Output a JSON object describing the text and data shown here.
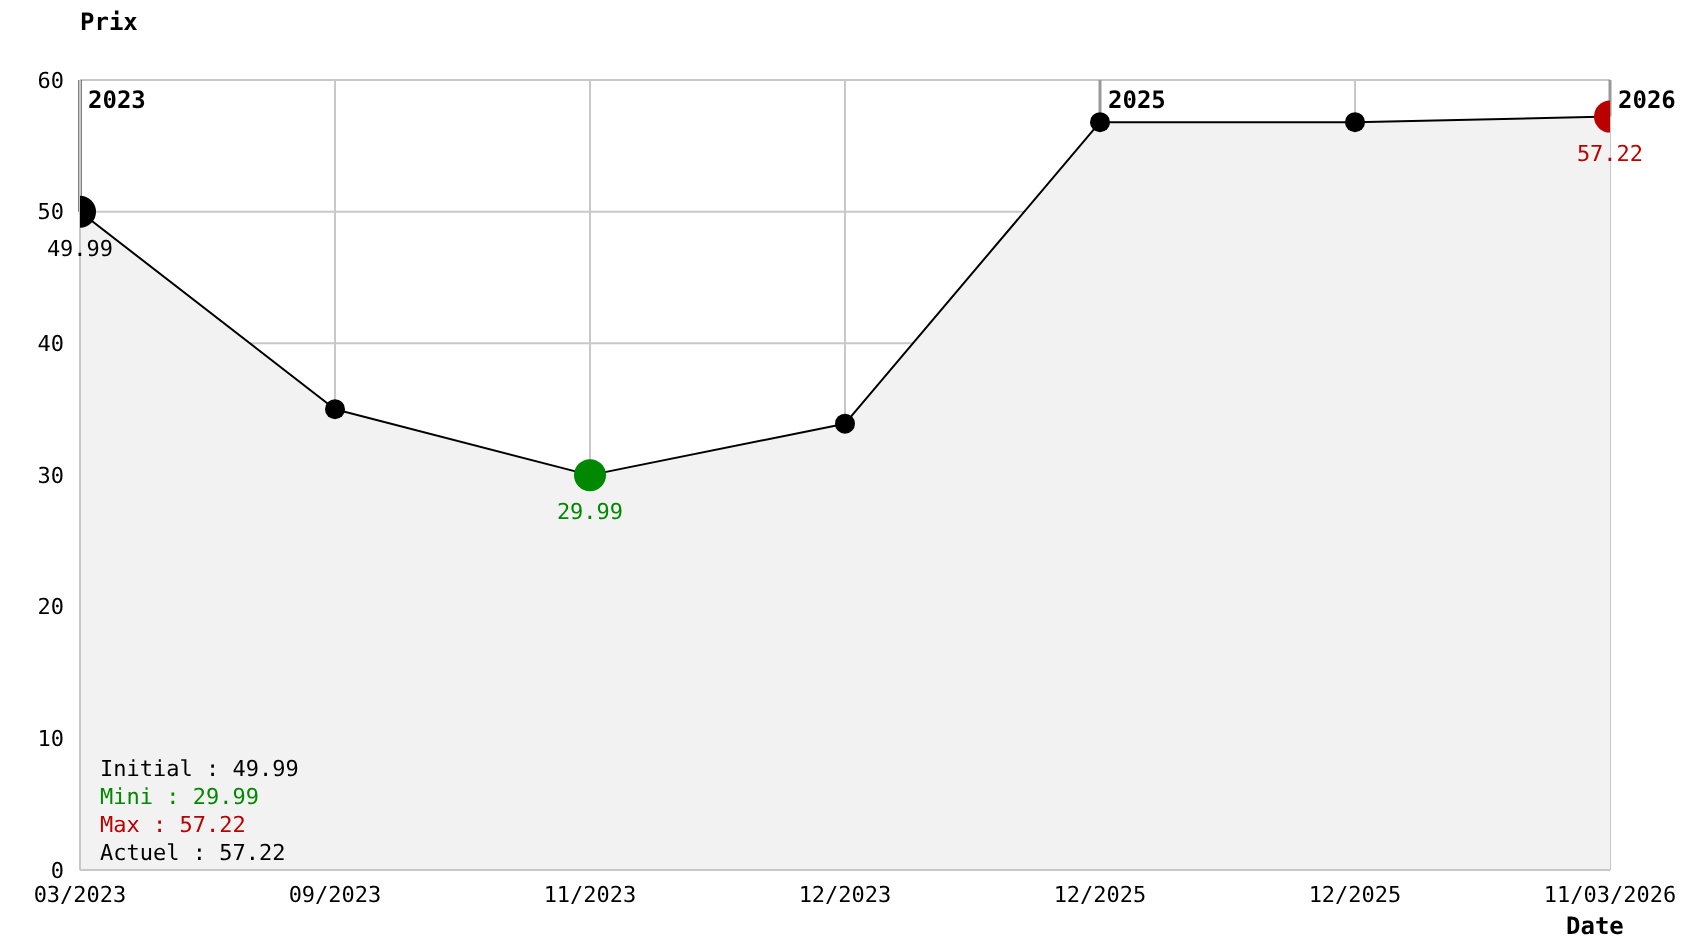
{
  "chart_data": {
    "type": "area",
    "xlabel": "Date",
    "ylabel": "Prix",
    "categories": [
      "03/2023",
      "09/2023",
      "11/2023",
      "12/2023",
      "12/2025",
      "12/2025",
      "11/03/2026"
    ],
    "series": [
      {
        "color": "#000000",
        "colors": [
          "#000000",
          "#000000",
          "#008800",
          "#000000",
          "#000000",
          "#000000",
          "#bb0000"
        ],
        "values": [
          49.99,
          35,
          29.99,
          33.9,
          56.8,
          56.8,
          57.22
        ],
        "value_labels": [
          "49.99",
          null,
          "29.99",
          null,
          null,
          null,
          "57.22"
        ]
      }
    ],
    "ylim": [
      0,
      60
    ],
    "yticks": [
      0,
      10,
      20,
      30,
      40,
      50,
      60
    ],
    "grid": true,
    "marker": "circle",
    "legend": false,
    "ref_lines": [
      {
        "axis": "x",
        "value": "03/2023",
        "label": "2023",
        "color": "#000000"
      },
      {
        "axis": "x",
        "value": "12/2025",
        "label": "2025",
        "color": "#999999"
      },
      {
        "axis": "x",
        "value": "11/03/2026",
        "label": "2026",
        "color": "#999999"
      }
    ],
    "annotations": [
      "Initial : 49.99",
      "Mini : 29.99",
      "Max : 57.22",
      "Actuel : 57.22"
    ]
  }
}
